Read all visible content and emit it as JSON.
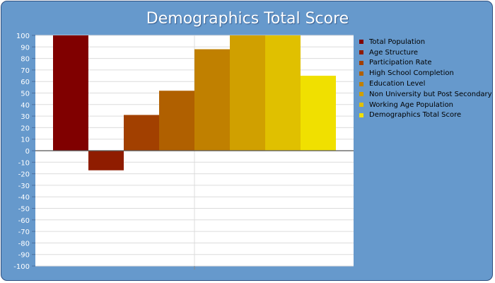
{
  "chart_data": {
    "type": "bar",
    "title": "Demographics Total Score",
    "xlabel": "",
    "ylabel": "",
    "ylim": [
      -100,
      100
    ],
    "ytick_step": 10,
    "grid": true,
    "legend_position": "right",
    "series": [
      {
        "name": "Total Population",
        "value": 100,
        "color": "#800000"
      },
      {
        "name": "Age Structure",
        "value": -17,
        "color": "#8f1c00"
      },
      {
        "name": "Participation Rate",
        "value": 31,
        "color": "#a24000"
      },
      {
        "name": "High School Completion",
        "value": 52,
        "color": "#b06000"
      },
      {
        "name": "Education Level",
        "value": 88,
        "color": "#c08000"
      },
      {
        "name": "Non University but Post Secondary",
        "value": 100,
        "color": "#d0a000"
      },
      {
        "name": "Working Age Population",
        "value": 100,
        "color": "#e0c000"
      },
      {
        "name": "Demographics Total Score",
        "value": 65,
        "color": "#f0e000"
      }
    ]
  }
}
